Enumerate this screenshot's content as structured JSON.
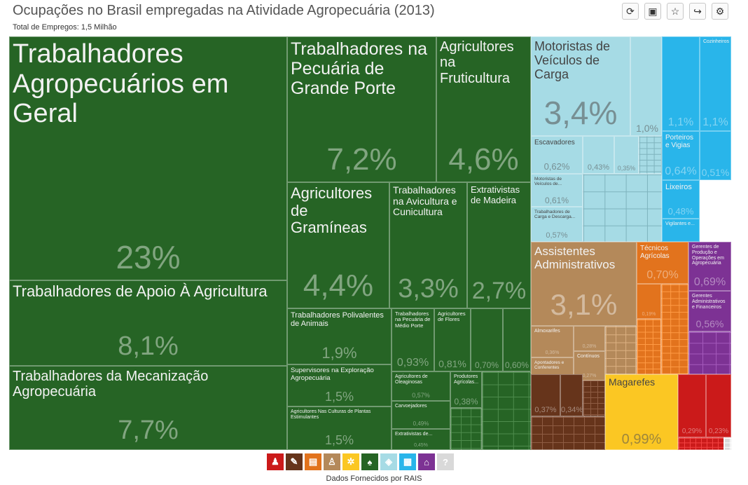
{
  "header": {
    "title": "Ocupações no Brasil empregadas na Atividade Agropecuária (2013)",
    "subtitle": "Total de Empregos: 1,5 Milhão"
  },
  "toolbar": [
    {
      "name": "refresh-icon",
      "glyph": "⟳"
    },
    {
      "name": "save-icon",
      "glyph": "▣"
    },
    {
      "name": "star-icon",
      "glyph": "☆"
    },
    {
      "name": "share-icon",
      "glyph": "↪"
    },
    {
      "name": "settings-icon",
      "glyph": "⚙"
    }
  ],
  "colors": {
    "agro_green": "#266425",
    "transport_blue": "#a6dbe5",
    "service_cyan": "#29b5ea",
    "admin_tan": "#b4895a",
    "technical_orange": "#e2731d",
    "manager_purple": "#7d3294",
    "industry_brown": "#66341b",
    "commerce_yellow": "#fbc723",
    "red": "#cb1a1a",
    "grey": "#d9d9d9"
  },
  "chart_data": {
    "type": "treemap",
    "total_label": "Total de Empregos: 1,5 Milhão",
    "items": [
      {
        "label": "Trabalhadores Agropecuários em Geral",
        "value": "23%",
        "group": "agro_green"
      },
      {
        "label": "Trabalhadores de Apoio À Agricultura",
        "value": "8,1%",
        "group": "agro_green"
      },
      {
        "label": "Trabalhadores da Mecanização Agropecuária",
        "value": "7,7%",
        "group": "agro_green"
      },
      {
        "label": "Trabalhadores na Pecuária de Grande Porte",
        "value": "7,2%",
        "group": "agro_green"
      },
      {
        "label": "Agricultores na Fruticultura",
        "value": "4,6%",
        "group": "agro_green"
      },
      {
        "label": "Agricultores de Gramíneas",
        "value": "4,4%",
        "group": "agro_green"
      },
      {
        "label": "Trabalhadores na Avicultura e Cunicultura",
        "value": "3,3%",
        "group": "agro_green"
      },
      {
        "label": "Extrativistas de Madeira",
        "value": "2,7%",
        "group": "agro_green"
      },
      {
        "label": "Trabalhadores Polivalentes de Animais",
        "value": "1,9%",
        "group": "agro_green"
      },
      {
        "label": "Trabalhadores na Pecuária de Médio Porte",
        "value": "0,93%",
        "group": "agro_green"
      },
      {
        "label": "Agricultores de Flores",
        "value": "0,81%",
        "group": "agro_green"
      },
      {
        "label": "",
        "value": "0,70%",
        "group": "agro_green"
      },
      {
        "label": "",
        "value": "0,60%",
        "group": "agro_green"
      },
      {
        "label": "Supervisores na Exploração Agropecuária",
        "value": "1,5%",
        "group": "agro_green"
      },
      {
        "label": "Agricultores Nas Culturas de Plantas Estimulantes",
        "value": "1,5%",
        "group": "agro_green"
      },
      {
        "label": "Agricultores de Oleaginosas",
        "value": "0,57%",
        "group": "agro_green"
      },
      {
        "label": "Produtores Agrícolas...",
        "value": "0,38%",
        "group": "agro_green"
      },
      {
        "label": "Carvoejadores",
        "value": "0,49%",
        "group": "agro_green"
      },
      {
        "label": "Extrativistas de...",
        "value": "0,45%",
        "group": "agro_green"
      },
      {
        "label": "Motoristas de Veículos de Carga",
        "value": "3,4%",
        "group": "transport_blue"
      },
      {
        "label": "",
        "value": "1,0%",
        "group": "transport_blue"
      },
      {
        "label": "Escavadores",
        "value": "0,62%",
        "group": "transport_blue"
      },
      {
        "label": "",
        "value": "0,43%",
        "group": "transport_blue"
      },
      {
        "label": "",
        "value": "0,35%",
        "group": "transport_blue"
      },
      {
        "label": "Motoristas de Veículos de...",
        "value": "0,61%",
        "group": "transport_blue"
      },
      {
        "label": "Trabalhadores de Carga e Descarga...",
        "value": "0,57%",
        "group": "transport_blue"
      },
      {
        "label": "",
        "value": "1,1%",
        "group": "service_cyan"
      },
      {
        "label": "Cozinheiros",
        "value": "1,1%",
        "group": "service_cyan"
      },
      {
        "label": "Porteiros e Vigias",
        "value": "0,64%",
        "group": "service_cyan"
      },
      {
        "label": "",
        "value": "0,51%",
        "group": "service_cyan"
      },
      {
        "label": "Lixeiros",
        "value": "0,48%",
        "group": "service_cyan"
      },
      {
        "label": "Vigilantes e...",
        "value": "",
        "group": "service_cyan"
      },
      {
        "label": "Assistentes Administrativos",
        "value": "3,1%",
        "group": "admin_tan"
      },
      {
        "label": "Almoxarifes",
        "value": "0,36%",
        "group": "admin_tan"
      },
      {
        "label": "",
        "value": "0,28%",
        "group": "admin_tan"
      },
      {
        "label": "Apontadores e Conferentes",
        "value": "0,31%",
        "group": "admin_tan"
      },
      {
        "label": "Contínuos",
        "value": "0,27%",
        "group": "admin_tan"
      },
      {
        "label": "Técnicos Agrícolas",
        "value": "0,70%",
        "group": "technical_orange"
      },
      {
        "label": "",
        "value": "0,19%",
        "group": "technical_orange"
      },
      {
        "label": "Gerentes de Produção e Operações em Agropecuária",
        "value": "0,69%",
        "group": "manager_purple"
      },
      {
        "label": "Gerentes Administrativos e Financeiros",
        "value": "0,56%",
        "group": "manager_purple"
      },
      {
        "label": "",
        "value": "0,37%",
        "group": "industry_brown"
      },
      {
        "label": "",
        "value": "0,34%",
        "group": "industry_brown"
      },
      {
        "label": "Magarefes",
        "value": "0,99%",
        "group": "commerce_yellow"
      },
      {
        "label": "",
        "value": "0,29%",
        "group": "red"
      },
      {
        "label": "",
        "value": "0,23%",
        "group": "red"
      }
    ]
  },
  "legend": [
    {
      "name": "legend-people-icon",
      "color": "#cb1a1a",
      "glyph": "♟"
    },
    {
      "name": "legend-tools-icon",
      "color": "#66341b",
      "glyph": "✎"
    },
    {
      "name": "legend-book-icon",
      "color": "#e2731d",
      "glyph": "▤"
    },
    {
      "name": "legend-desk-icon",
      "color": "#b4895a",
      "glyph": "♙"
    },
    {
      "name": "legend-gears-icon",
      "color": "#fbc723",
      "glyph": "✲"
    },
    {
      "name": "legend-farm-icon",
      "color": "#266425",
      "glyph": "♠"
    },
    {
      "name": "legend-box-icon",
      "color": "#a6dbe5",
      "glyph": "◈"
    },
    {
      "name": "legend-shop-icon",
      "color": "#29b5ea",
      "glyph": "▦"
    },
    {
      "name": "legend-house-icon",
      "color": "#7d3294",
      "glyph": "⌂"
    },
    {
      "name": "legend-unknown-icon",
      "color": "#d9d9d9",
      "glyph": "?"
    }
  ],
  "footer": {
    "source": "Dados Fornecidos por RAIS"
  }
}
